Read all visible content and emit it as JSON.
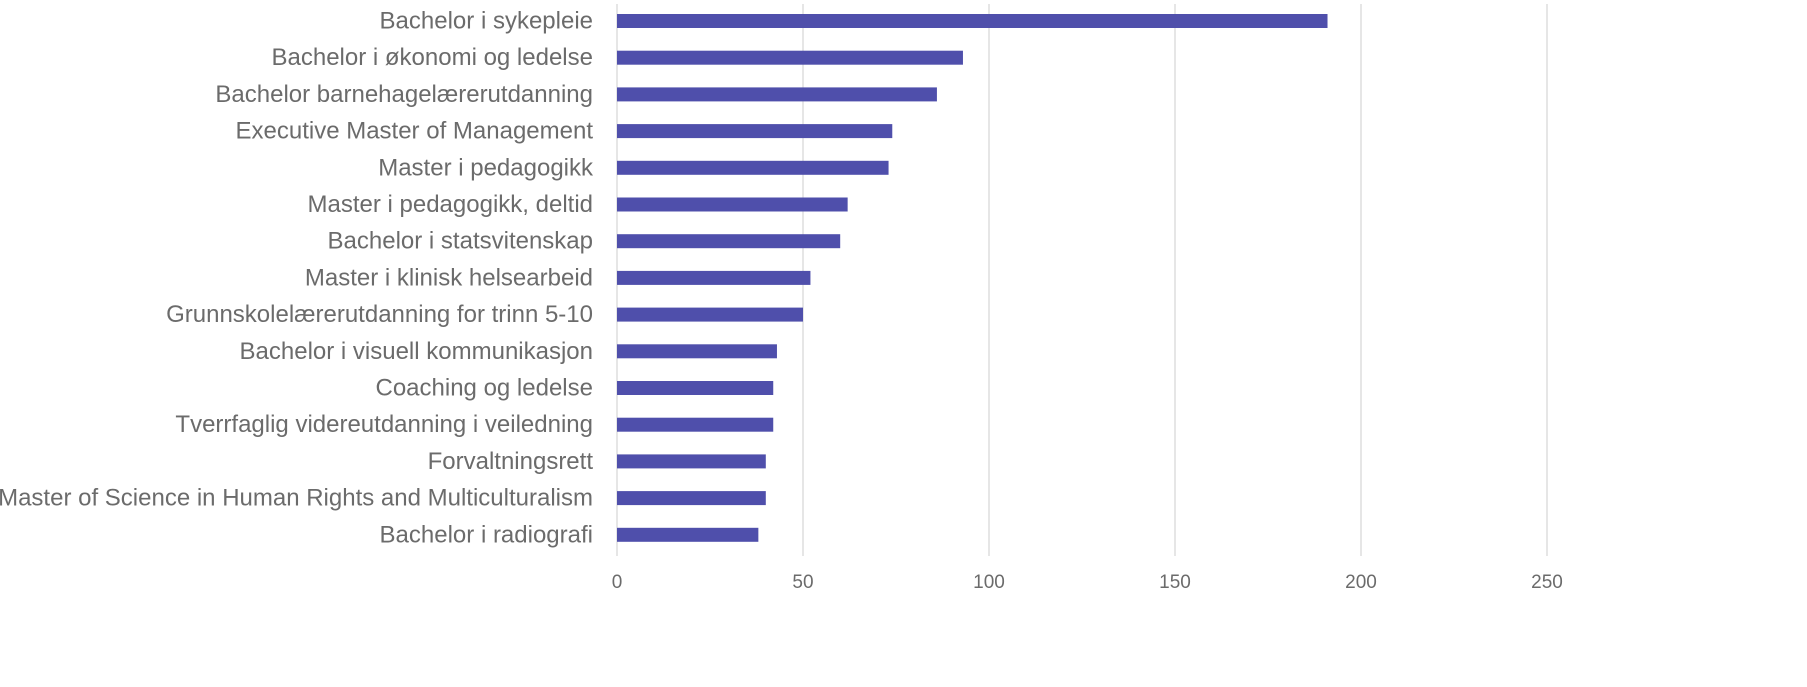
{
  "chart_data": {
    "type": "bar",
    "orientation": "horizontal",
    "title": "",
    "xlabel": "",
    "ylabel": "",
    "categories": [
      "Bachelor i sykepleie",
      "Bachelor i økonomi og ledelse",
      "Bachelor barnehagelærerutdanning",
      "Executive Master of Management",
      "Master i pedagogikk",
      "Master i pedagogikk, deltid",
      "Bachelor i statsvitenskap",
      "Master i klinisk helsearbeid",
      "Grunnskolelærerutdanning for trinn 5-10",
      "Bachelor i visuell kommunikasjon",
      "Coaching og ledelse",
      "Tverrfaglig videreutdanning i veiledning",
      "Forvaltningsrett",
      "Master of Science in Human Rights and Multiculturalism",
      "Bachelor i radiografi"
    ],
    "values": [
      191,
      93,
      86,
      74,
      73,
      62,
      60,
      52,
      50,
      43,
      42,
      42,
      40,
      40,
      38
    ],
    "xlim": [
      0,
      250
    ],
    "xticks": [
      "0",
      "50",
      "100",
      "150",
      "200",
      "250"
    ],
    "grid": true,
    "legend": "none",
    "bar_color": "#4f4fab",
    "grid_color": "#d9d9d9",
    "label_color": "#6b6b6b"
  }
}
